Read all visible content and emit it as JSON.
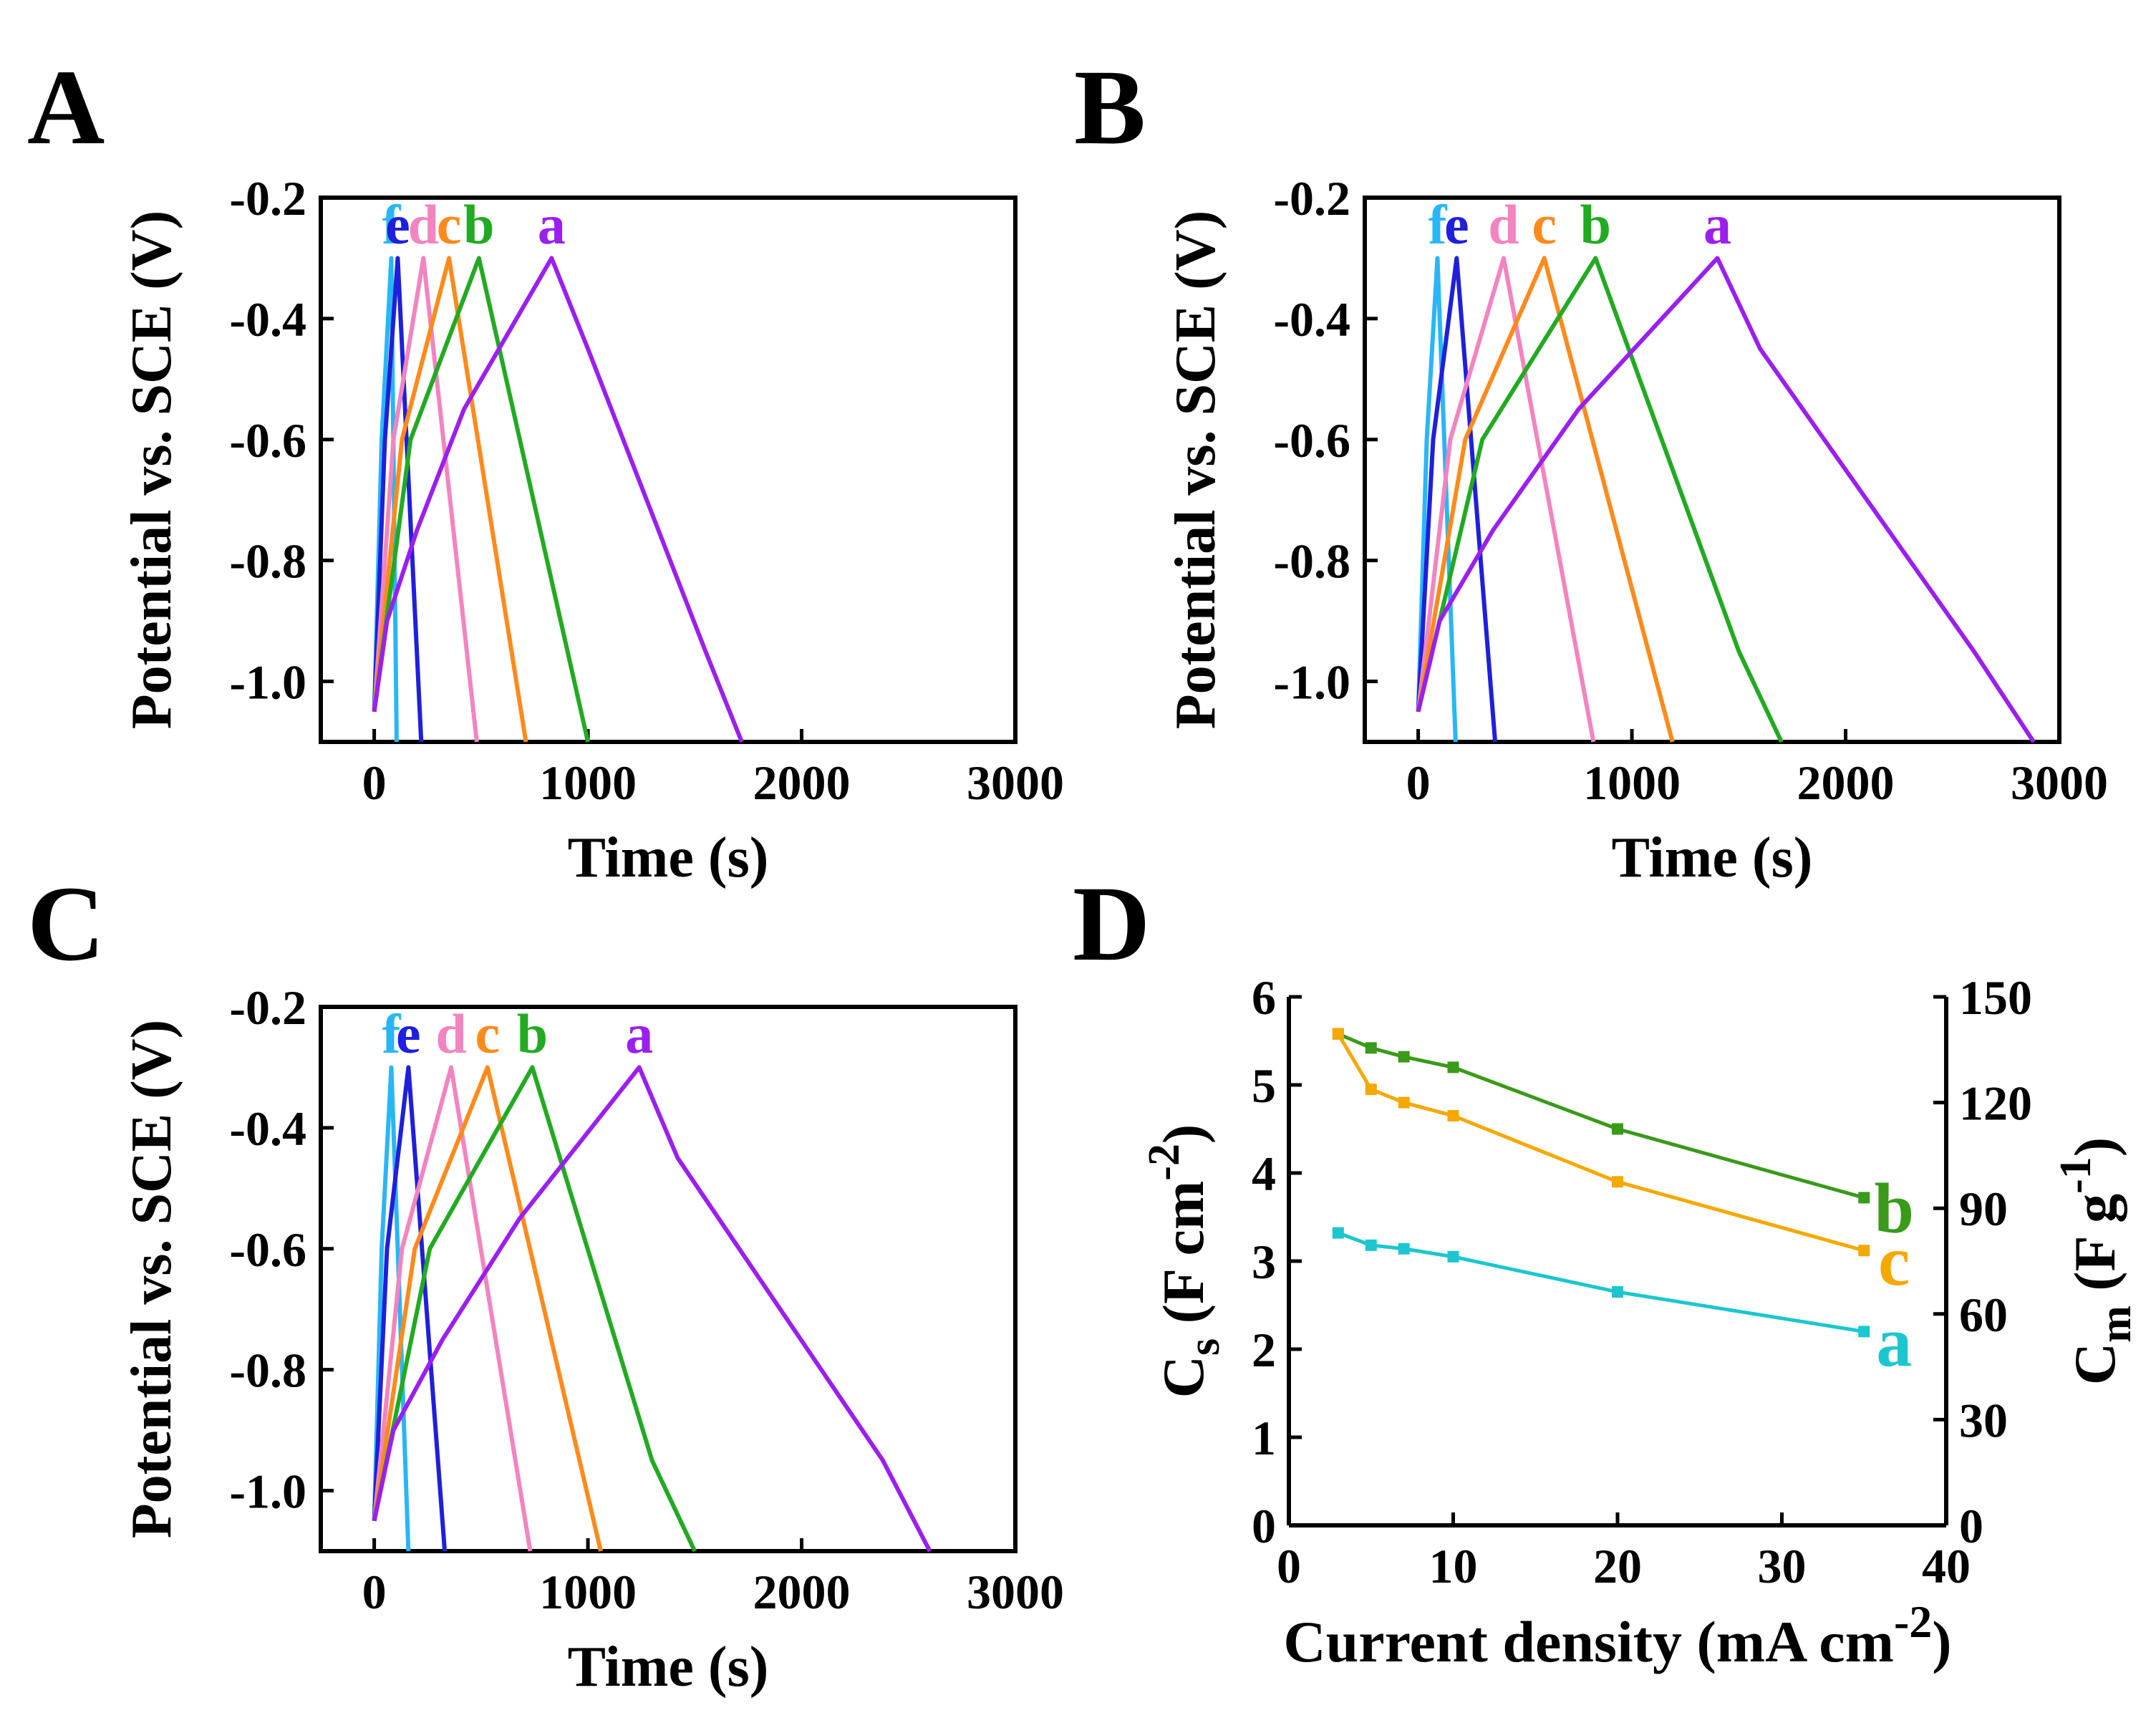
{
  "panel_letters": [
    "A",
    "B",
    "C",
    "D"
  ],
  "chart_data": [
    {
      "panel": "A",
      "type": "line",
      "xlabel": "Time (s)",
      "ylabel": "Potential vs. SCE (V)",
      "xlim": [
        -250,
        3000
      ],
      "ylim": [
        -1.1,
        -0.2
      ],
      "xticks": [
        "0",
        "1000",
        "2000",
        "3000"
      ],
      "yticks": [
        "-0.2",
        "-0.4",
        "-0.6",
        "-0.8",
        "-1.0"
      ],
      "series": [
        {
          "name": "f",
          "color": "#29b6f6",
          "x": [
            0,
            35,
            80
          ],
          "y": [
            -1.05,
            -0.6,
            -0.3
          ],
          "x2": [
            80,
            105
          ],
          "y2": [
            -0.3,
            -1.1
          ]
        },
        {
          "name": "e",
          "color": "#1f1fdc",
          "x": [
            0,
            50,
            110
          ],
          "y": [
            -1.05,
            -0.6,
            -0.3
          ],
          "x2": [
            110,
            220
          ],
          "y2": [
            -0.3,
            -1.1
          ]
        },
        {
          "name": "d",
          "color": "#f284c0",
          "x": [
            0,
            90,
            230
          ],
          "y": [
            -1.05,
            -0.6,
            -0.3
          ],
          "x2": [
            230,
            480
          ],
          "y2": [
            -0.3,
            -1.1
          ]
        },
        {
          "name": "c",
          "color": "#ff8a1c",
          "x": [
            0,
            130,
            350
          ],
          "y": [
            -1.05,
            -0.6,
            -0.3
          ],
          "x2": [
            350,
            710
          ],
          "y2": [
            -0.3,
            -1.1
          ]
        },
        {
          "name": "b",
          "color": "#22aa22",
          "x": [
            0,
            170,
            490
          ],
          "y": [
            -1.05,
            -0.6,
            -0.3
          ],
          "x2": [
            490,
            1000
          ],
          "y2": [
            -0.3,
            -1.1
          ]
        },
        {
          "name": "a",
          "color": "#9b1ff0",
          "x": [
            0,
            60,
            200,
            420,
            830
          ],
          "y": [
            -1.05,
            -0.9,
            -0.75,
            -0.55,
            -0.3
          ],
          "x2": [
            830,
            1000,
            1550,
            1720
          ],
          "y2": [
            -0.3,
            -0.45,
            -0.95,
            -1.1
          ]
        }
      ]
    },
    {
      "panel": "B",
      "type": "line",
      "xlabel": "Time (s)",
      "ylabel": "Potential vs. SCE (V)",
      "xlim": [
        -250,
        3000
      ],
      "ylim": [
        -1.1,
        -0.2
      ],
      "xticks": [
        "0",
        "1000",
        "2000",
        "3000"
      ],
      "yticks": [
        "-0.2",
        "-0.4",
        "-0.6",
        "-0.8",
        "-1.0"
      ],
      "series": [
        {
          "name": "f",
          "color": "#29b6f6",
          "x": [
            0,
            40,
            90
          ],
          "y": [
            -1.05,
            -0.6,
            -0.3
          ],
          "x2": [
            90,
            175
          ],
          "y2": [
            -0.3,
            -1.1
          ]
        },
        {
          "name": "e",
          "color": "#1f1fdc",
          "x": [
            0,
            70,
            180
          ],
          "y": [
            -1.05,
            -0.6,
            -0.3
          ],
          "x2": [
            180,
            360
          ],
          "y2": [
            -0.3,
            -1.1
          ]
        },
        {
          "name": "d",
          "color": "#f284c0",
          "x": [
            0,
            150,
            400
          ],
          "y": [
            -1.05,
            -0.6,
            -0.3
          ],
          "x2": [
            400,
            820
          ],
          "y2": [
            -0.3,
            -1.1
          ]
        },
        {
          "name": "c",
          "color": "#ff8a1c",
          "x": [
            0,
            220,
            590
          ],
          "y": [
            -1.05,
            -0.6,
            -0.3
          ],
          "x2": [
            590,
            1190
          ],
          "y2": [
            -0.3,
            -1.1
          ]
        },
        {
          "name": "b",
          "color": "#22aa22",
          "x": [
            0,
            300,
            830
          ],
          "y": [
            -1.05,
            -0.6,
            -0.3
          ],
          "x2": [
            830,
            1500,
            1700
          ],
          "y2": [
            -0.3,
            -0.95,
            -1.1
          ]
        },
        {
          "name": "a",
          "color": "#9b1ff0",
          "x": [
            0,
            100,
            350,
            750,
            1400
          ],
          "y": [
            -1.05,
            -0.9,
            -0.75,
            -0.55,
            -0.3
          ],
          "x2": [
            1400,
            1600,
            2600,
            2880
          ],
          "y2": [
            -0.3,
            -0.45,
            -0.95,
            -1.1
          ]
        }
      ]
    },
    {
      "panel": "C",
      "type": "line",
      "xlabel": "Time (s)",
      "ylabel": "Potential vs. SCE (V)",
      "xlim": [
        -250,
        3000
      ],
      "ylim": [
        -1.1,
        -0.2
      ],
      "xticks": [
        "0",
        "1000",
        "2000",
        "3000"
      ],
      "yticks": [
        "-0.2",
        "-0.4",
        "-0.6",
        "-0.8",
        "-1.0"
      ],
      "series": [
        {
          "name": "f",
          "color": "#29b6f6",
          "x": [
            0,
            35,
            80
          ],
          "y": [
            -1.05,
            -0.6,
            -0.3
          ],
          "x2": [
            80,
            160
          ],
          "y2": [
            -0.3,
            -1.1
          ]
        },
        {
          "name": "e",
          "color": "#1f1fdc",
          "x": [
            0,
            60,
            160
          ],
          "y": [
            -1.05,
            -0.6,
            -0.3
          ],
          "x2": [
            160,
            330
          ],
          "y2": [
            -0.3,
            -1.1
          ]
        },
        {
          "name": "d",
          "color": "#f284c0",
          "x": [
            0,
            130,
            360
          ],
          "y": [
            -1.05,
            -0.6,
            -0.3
          ],
          "x2": [
            360,
            730
          ],
          "y2": [
            -0.3,
            -1.1
          ]
        },
        {
          "name": "c",
          "color": "#ff8a1c",
          "x": [
            0,
            190,
            530
          ],
          "y": [
            -1.05,
            -0.6,
            -0.3
          ],
          "x2": [
            530,
            1060
          ],
          "y2": [
            -0.3,
            -1.1
          ]
        },
        {
          "name": "b",
          "color": "#22aa22",
          "x": [
            0,
            260,
            740
          ],
          "y": [
            -1.05,
            -0.6,
            -0.3
          ],
          "x2": [
            740,
            1300,
            1500
          ],
          "y2": [
            -0.3,
            -0.95,
            -1.1
          ]
        },
        {
          "name": "a",
          "color": "#9b1ff0",
          "x": [
            0,
            90,
            320,
            680,
            1240
          ],
          "y": [
            -1.05,
            -0.9,
            -0.75,
            -0.55,
            -0.3
          ],
          "x2": [
            1240,
            1420,
            2380,
            2600
          ],
          "y2": [
            -0.3,
            -0.45,
            -0.95,
            -1.1
          ]
        }
      ]
    },
    {
      "panel": "D",
      "type": "line",
      "xlabel": "Current density (mA cm",
      "xlabel_sup": "-2",
      "xlabel_end": ")",
      "ylabel": "C",
      "ylabel_sub": "s",
      "ylabel_rest": " (F cm",
      "ylabel_sup": "-2",
      "ylabel_end": ")",
      "y2label": "C",
      "y2label_sub": "m",
      "y2label_rest": " (F g",
      "y2label_sup": "-1",
      "y2label_end": ")",
      "xlim": [
        0,
        40
      ],
      "ylim": [
        0,
        6
      ],
      "y2lim": [
        0,
        150
      ],
      "xticks": [
        "0",
        "10",
        "20",
        "30",
        "40"
      ],
      "yticks": [
        "0",
        "1",
        "2",
        "3",
        "4",
        "5",
        "6"
      ],
      "y2ticks": [
        "0",
        "30",
        "60",
        "90",
        "120",
        "150"
      ],
      "x": [
        3,
        5,
        7,
        10,
        20,
        35
      ],
      "series": [
        {
          "name": "b",
          "color": "#3a9a1a",
          "values": [
            5.58,
            5.42,
            5.32,
            5.2,
            4.5,
            3.72
          ]
        },
        {
          "name": "c",
          "color": "#f5a800",
          "values": [
            5.58,
            4.95,
            4.8,
            4.65,
            3.9,
            3.12
          ]
        },
        {
          "name": "a",
          "color": "#1cc6d0",
          "values": [
            3.32,
            3.18,
            3.14,
            3.05,
            2.65,
            2.2
          ]
        }
      ]
    }
  ]
}
